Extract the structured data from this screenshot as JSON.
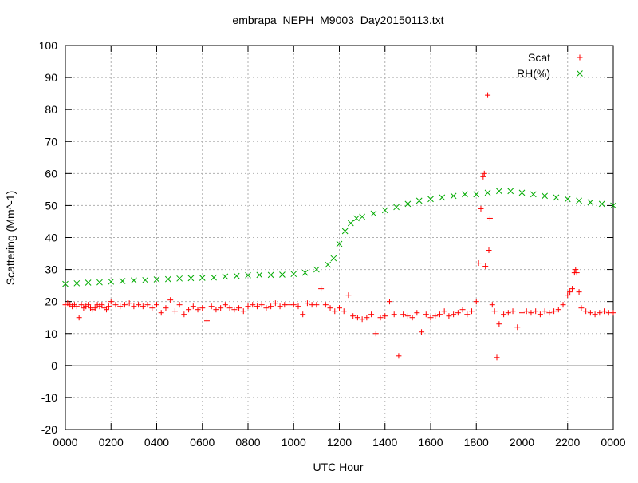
{
  "chart_data": {
    "type": "scatter",
    "title": "embrapa_NEPH_M9003_Day20150113.txt",
    "xlabel": "UTC Hour",
    "ylabel": "Scattering (Mm^-1)",
    "xlim": [
      0,
      24
    ],
    "ylim": [
      -20,
      100
    ],
    "grid": true,
    "legend_position": "top-right",
    "x_ticks": [
      {
        "x": 0,
        "label": "0000"
      },
      {
        "x": 2,
        "label": "0200"
      },
      {
        "x": 4,
        "label": "0400"
      },
      {
        "x": 6,
        "label": "0600"
      },
      {
        "x": 8,
        "label": "0800"
      },
      {
        "x": 10,
        "label": "1000"
      },
      {
        "x": 12,
        "label": "1200"
      },
      {
        "x": 14,
        "label": "1400"
      },
      {
        "x": 16,
        "label": "1600"
      },
      {
        "x": 18,
        "label": "1800"
      },
      {
        "x": 20,
        "label": "2000"
      },
      {
        "x": 22,
        "label": "2200"
      },
      {
        "x": 24,
        "label": "0000"
      }
    ],
    "y_ticks": [
      -20,
      -10,
      0,
      10,
      20,
      30,
      40,
      50,
      60,
      70,
      80,
      90,
      100
    ],
    "series": [
      {
        "name": "Scat",
        "marker": "+",
        "color": "#ff0000",
        "points": [
          [
            0.0,
            19.0
          ],
          [
            0.1,
            19.5
          ],
          [
            0.2,
            19.0
          ],
          [
            0.3,
            18.5
          ],
          [
            0.4,
            19.0
          ],
          [
            0.5,
            18.5
          ],
          [
            0.6,
            15.0
          ],
          [
            0.7,
            19.0
          ],
          [
            0.8,
            18.0
          ],
          [
            0.9,
            18.5
          ],
          [
            1.0,
            19.0
          ],
          [
            1.1,
            18.0
          ],
          [
            1.2,
            17.5
          ],
          [
            1.3,
            18.0
          ],
          [
            1.4,
            19.0
          ],
          [
            1.5,
            18.5
          ],
          [
            1.6,
            19.0
          ],
          [
            1.7,
            18.0
          ],
          [
            1.8,
            17.5
          ],
          [
            1.9,
            18.5
          ],
          [
            2.0,
            20.0
          ],
          [
            2.2,
            19.0
          ],
          [
            2.4,
            18.5
          ],
          [
            2.6,
            19.0
          ],
          [
            2.8,
            19.5
          ],
          [
            3.0,
            18.5
          ],
          [
            3.2,
            19.0
          ],
          [
            3.4,
            18.5
          ],
          [
            3.6,
            19.0
          ],
          [
            3.8,
            18.0
          ],
          [
            4.0,
            19.0
          ],
          [
            4.2,
            16.5
          ],
          [
            4.4,
            18.0
          ],
          [
            4.6,
            20.5
          ],
          [
            4.8,
            17.0
          ],
          [
            5.0,
            19.0
          ],
          [
            5.2,
            16.0
          ],
          [
            5.4,
            17.5
          ],
          [
            5.6,
            18.5
          ],
          [
            5.8,
            17.5
          ],
          [
            6.0,
            18.0
          ],
          [
            6.2,
            14.0
          ],
          [
            6.4,
            18.5
          ],
          [
            6.6,
            17.5
          ],
          [
            6.8,
            18.0
          ],
          [
            7.0,
            19.0
          ],
          [
            7.2,
            18.0
          ],
          [
            7.4,
            17.5
          ],
          [
            7.6,
            18.0
          ],
          [
            7.8,
            17.0
          ],
          [
            8.0,
            18.5
          ],
          [
            8.2,
            19.0
          ],
          [
            8.4,
            18.5
          ],
          [
            8.6,
            19.0
          ],
          [
            8.8,
            18.0
          ],
          [
            9.0,
            18.5
          ],
          [
            9.2,
            19.5
          ],
          [
            9.4,
            18.5
          ],
          [
            9.6,
            19.0
          ],
          [
            9.8,
            19.0
          ],
          [
            10.0,
            19.0
          ],
          [
            10.2,
            18.5
          ],
          [
            10.4,
            16.0
          ],
          [
            10.6,
            19.5
          ],
          [
            10.8,
            19.0
          ],
          [
            11.0,
            19.0
          ],
          [
            11.2,
            24.0
          ],
          [
            11.4,
            19.0
          ],
          [
            11.6,
            18.0
          ],
          [
            11.8,
            17.0
          ],
          [
            12.0,
            18.0
          ],
          [
            12.2,
            17.0
          ],
          [
            12.4,
            22.0
          ],
          [
            12.6,
            15.5
          ],
          [
            12.8,
            15.0
          ],
          [
            13.0,
            14.5
          ],
          [
            13.2,
            15.0
          ],
          [
            13.4,
            16.0
          ],
          [
            13.6,
            10.0
          ],
          [
            13.8,
            15.0
          ],
          [
            14.0,
            15.5
          ],
          [
            14.2,
            20.0
          ],
          [
            14.4,
            16.0
          ],
          [
            14.6,
            3.0
          ],
          [
            14.8,
            16.0
          ],
          [
            15.0,
            15.5
          ],
          [
            15.2,
            15.0
          ],
          [
            15.4,
            16.5
          ],
          [
            15.6,
            10.5
          ],
          [
            15.8,
            16.0
          ],
          [
            16.0,
            15.0
          ],
          [
            16.2,
            15.5
          ],
          [
            16.4,
            16.0
          ],
          [
            16.6,
            17.0
          ],
          [
            16.8,
            15.5
          ],
          [
            17.0,
            16.0
          ],
          [
            17.2,
            16.5
          ],
          [
            17.4,
            17.5
          ],
          [
            17.6,
            16.0
          ],
          [
            17.8,
            17.0
          ],
          [
            18.0,
            20.0
          ],
          [
            18.1,
            32.0
          ],
          [
            18.2,
            49.0
          ],
          [
            18.3,
            59.0
          ],
          [
            18.35,
            60.0
          ],
          [
            18.4,
            31.0
          ],
          [
            18.5,
            84.5
          ],
          [
            18.55,
            36.0
          ],
          [
            18.6,
            46.0
          ],
          [
            18.7,
            19.0
          ],
          [
            18.8,
            17.0
          ],
          [
            18.9,
            2.5
          ],
          [
            19.0,
            13.0
          ],
          [
            19.2,
            16.0
          ],
          [
            19.4,
            16.5
          ],
          [
            19.6,
            17.0
          ],
          [
            19.8,
            12.0
          ],
          [
            20.0,
            16.5
          ],
          [
            20.2,
            17.0
          ],
          [
            20.4,
            16.5
          ],
          [
            20.6,
            17.0
          ],
          [
            20.8,
            16.0
          ],
          [
            21.0,
            17.0
          ],
          [
            21.2,
            16.5
          ],
          [
            21.4,
            17.0
          ],
          [
            21.6,
            17.5
          ],
          [
            21.8,
            19.0
          ],
          [
            22.0,
            22.0
          ],
          [
            22.1,
            23.0
          ],
          [
            22.2,
            24.0
          ],
          [
            22.3,
            29.0
          ],
          [
            22.35,
            30.0
          ],
          [
            22.4,
            29.0
          ],
          [
            22.5,
            23.0
          ],
          [
            22.6,
            18.0
          ],
          [
            22.8,
            17.0
          ],
          [
            23.0,
            16.5
          ],
          [
            23.2,
            16.0
          ],
          [
            23.4,
            16.5
          ],
          [
            23.6,
            17.0
          ],
          [
            23.8,
            16.5
          ],
          [
            24.0,
            16.5
          ]
        ]
      },
      {
        "name": "RH(%)",
        "marker": "x",
        "color": "#00aa00",
        "points": [
          [
            0.0,
            25.5
          ],
          [
            0.5,
            25.7
          ],
          [
            1.0,
            25.9
          ],
          [
            1.5,
            26.0
          ],
          [
            2.0,
            26.2
          ],
          [
            2.5,
            26.4
          ],
          [
            3.0,
            26.6
          ],
          [
            3.5,
            26.7
          ],
          [
            4.0,
            26.9
          ],
          [
            4.5,
            27.0
          ],
          [
            5.0,
            27.2
          ],
          [
            5.5,
            27.3
          ],
          [
            6.0,
            27.4
          ],
          [
            6.5,
            27.5
          ],
          [
            7.0,
            27.8
          ],
          [
            7.5,
            28.0
          ],
          [
            8.0,
            28.2
          ],
          [
            8.5,
            28.3
          ],
          [
            9.0,
            28.3
          ],
          [
            9.5,
            28.4
          ],
          [
            10.0,
            28.6
          ],
          [
            10.5,
            29.0
          ],
          [
            11.0,
            30.0
          ],
          [
            11.5,
            31.5
          ],
          [
            11.75,
            33.5
          ],
          [
            12.0,
            38.0
          ],
          [
            12.25,
            42.0
          ],
          [
            12.5,
            44.5
          ],
          [
            12.75,
            46.0
          ],
          [
            13.0,
            46.5
          ],
          [
            13.5,
            47.5
          ],
          [
            14.0,
            48.5
          ],
          [
            14.5,
            49.5
          ],
          [
            15.0,
            50.5
          ],
          [
            15.5,
            51.5
          ],
          [
            16.0,
            52.0
          ],
          [
            16.5,
            52.5
          ],
          [
            17.0,
            53.0
          ],
          [
            17.5,
            53.5
          ],
          [
            18.0,
            53.5
          ],
          [
            18.5,
            54.0
          ],
          [
            19.0,
            54.5
          ],
          [
            19.5,
            54.5
          ],
          [
            20.0,
            54.0
          ],
          [
            20.5,
            53.5
          ],
          [
            21.0,
            53.0
          ],
          [
            21.5,
            52.5
          ],
          [
            22.0,
            52.0
          ],
          [
            22.5,
            51.5
          ],
          [
            23.0,
            51.0
          ],
          [
            23.5,
            50.5
          ],
          [
            24.0,
            50.0
          ]
        ]
      }
    ]
  }
}
